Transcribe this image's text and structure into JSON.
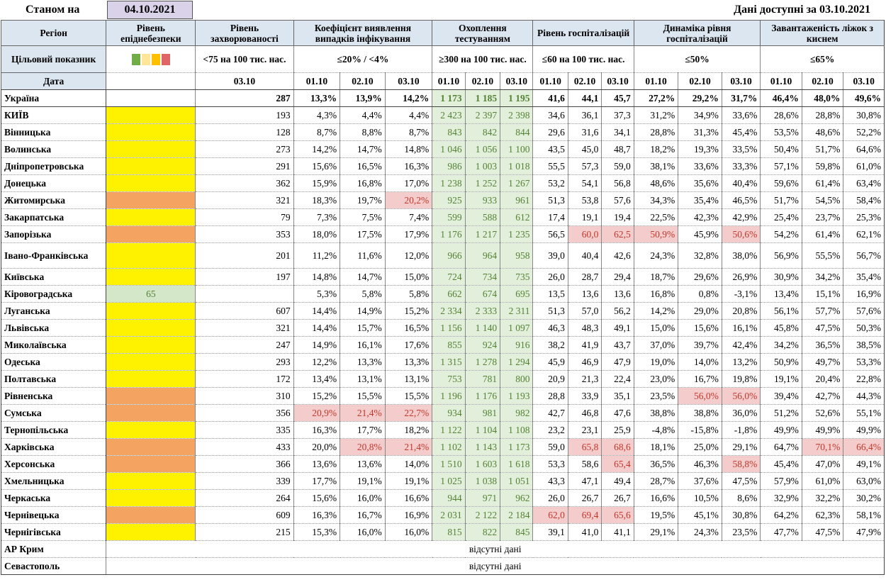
{
  "header": {
    "as_of_label": "Станом на",
    "as_of_date": "04.10.2021",
    "available_label": "Дані доступні за 03.10.2021"
  },
  "columns": {
    "region": "Регіон",
    "level": "Рівень епіднебезпеки",
    "incidence": "Рівень захворюваності",
    "detection": "Коефіцієнт виявлення випадків інфікування",
    "testing": "Охоплення тестуванням",
    "hosp": "Рівень госпіталізацій",
    "hosp_dyn": "Динаміка рівня госпіталізацій",
    "oxygen": "Завантаженість ліжок з киснем"
  },
  "targets": {
    "label": "Цільовий показник",
    "incidence": "<75 на 100 тис. нас.",
    "detection": "≤20% / <4%",
    "testing": "≥300 на 100 тис. нас.",
    "hosp": "≤60 на 100 тис. нас.",
    "hosp_dyn": "≤50%",
    "oxygen": "≤65%"
  },
  "level_swatch_colors": [
    "#70ad47",
    "#ffe699",
    "#ffc000",
    "#e06666"
  ],
  "date_row": {
    "label": "Дата",
    "incidence_date": "03.10",
    "dates": [
      "01.10",
      "02.10",
      "03.10"
    ]
  },
  "ukraine": {
    "name": "Україна",
    "incidence": "287",
    "detection": [
      "13,3%",
      "13,9%",
      "14,2%"
    ],
    "testing": [
      "1 173",
      "1 185",
      "1 195"
    ],
    "hosp": [
      "41,6",
      "44,1",
      "45,7"
    ],
    "hosp_dyn": [
      "27,2%",
      "29,2%",
      "31,7%"
    ],
    "oxygen": [
      "46,4%",
      "48,0%",
      "49,6%"
    ]
  },
  "regions": [
    {
      "name": "КИЇВ",
      "level": "yellow",
      "level_text": "",
      "incidence": "193",
      "detection": [
        "4,3%",
        "4,4%",
        "4,4%"
      ],
      "testing": [
        "2 423",
        "2 397",
        "2 398"
      ],
      "hosp": [
        "34,6",
        "36,1",
        "37,3"
      ],
      "hosp_dyn": [
        "31,2%",
        "34,9%",
        "33,6%"
      ],
      "oxygen": [
        "28,6%",
        "28,8%",
        "30,8%"
      ],
      "warn": []
    },
    {
      "name": "Вінницька",
      "level": "yellow",
      "level_text": "",
      "incidence": "128",
      "detection": [
        "8,7%",
        "8,8%",
        "8,7%"
      ],
      "testing": [
        "843",
        "842",
        "844"
      ],
      "hosp": [
        "29,6",
        "31,6",
        "34,1"
      ],
      "hosp_dyn": [
        "28,8%",
        "31,3%",
        "45,4%"
      ],
      "oxygen": [
        "53,5%",
        "48,6%",
        "52,2%"
      ],
      "warn": []
    },
    {
      "name": "Волинська",
      "level": "yellow",
      "level_text": "",
      "incidence": "273",
      "detection": [
        "14,2%",
        "14,7%",
        "14,8%"
      ],
      "testing": [
        "1 046",
        "1 056",
        "1 100"
      ],
      "hosp": [
        "43,5",
        "45,0",
        "48,7"
      ],
      "hosp_dyn": [
        "18,2%",
        "19,3%",
        "33,5%"
      ],
      "oxygen": [
        "50,4%",
        "51,7%",
        "64,6%"
      ],
      "warn": []
    },
    {
      "name": "Дніпропетровська",
      "level": "yellow",
      "level_text": "",
      "incidence": "291",
      "detection": [
        "15,6%",
        "16,5%",
        "16,3%"
      ],
      "testing": [
        "986",
        "1 003",
        "1 018"
      ],
      "hosp": [
        "55,5",
        "57,3",
        "59,0"
      ],
      "hosp_dyn": [
        "38,1%",
        "33,6%",
        "33,3%"
      ],
      "oxygen": [
        "57,1%",
        "59,8%",
        "61,0%"
      ],
      "warn": []
    },
    {
      "name": "Донецька",
      "level": "yellow",
      "level_text": "",
      "incidence": "362",
      "detection": [
        "15,9%",
        "16,8%",
        "17,0%"
      ],
      "testing": [
        "1 238",
        "1 252",
        "1 267"
      ],
      "hosp": [
        "53,2",
        "54,1",
        "56,8"
      ],
      "hosp_dyn": [
        "48,6%",
        "35,6%",
        "40,4%"
      ],
      "oxygen": [
        "59,6%",
        "61,4%",
        "63,4%"
      ],
      "warn": []
    },
    {
      "name": "Житомирська",
      "level": "orange",
      "level_text": "",
      "incidence": "321",
      "detection": [
        "18,3%",
        "19,7%",
        "20,2%"
      ],
      "testing": [
        "925",
        "933",
        "961"
      ],
      "hosp": [
        "51,3",
        "53,8",
        "57,6"
      ],
      "hosp_dyn": [
        "34,3%",
        "35,4%",
        "46,5%"
      ],
      "oxygen": [
        "51,7%",
        "54,5%",
        "58,4%"
      ],
      "warn": [
        "detection.2"
      ]
    },
    {
      "name": "Закарпатська",
      "level": "yellow",
      "level_text": "",
      "incidence": "79",
      "detection": [
        "7,3%",
        "7,5%",
        "7,4%"
      ],
      "testing": [
        "599",
        "588",
        "612"
      ],
      "hosp": [
        "17,4",
        "19,1",
        "19,4"
      ],
      "hosp_dyn": [
        "22,5%",
        "42,3%",
        "42,9%"
      ],
      "oxygen": [
        "25,4%",
        "23,7%",
        "25,3%"
      ],
      "warn": []
    },
    {
      "name": "Запорізька",
      "level": "orange",
      "level_text": "",
      "incidence": "353",
      "detection": [
        "18,0%",
        "17,5%",
        "17,9%"
      ],
      "testing": [
        "1 176",
        "1 217",
        "1 235"
      ],
      "hosp": [
        "56,5",
        "60,0",
        "62,5"
      ],
      "hosp_dyn": [
        "50,9%",
        "45,9%",
        "50,6%"
      ],
      "oxygen": [
        "54,2%",
        "61,4%",
        "62,1%"
      ],
      "warn": [
        "hosp.1",
        "hosp.2",
        "hosp_dyn.0",
        "hosp_dyn.2"
      ]
    },
    {
      "name": "Івано-Франківська",
      "level": "yellow",
      "level_text": "",
      "incidence": "201",
      "detection": [
        "11,2%",
        "11,6%",
        "12,0%"
      ],
      "testing": [
        "966",
        "964",
        "958"
      ],
      "hosp": [
        "39,0",
        "40,4",
        "42,6"
      ],
      "hosp_dyn": [
        "24,3%",
        "32,8%",
        "38,0%"
      ],
      "oxygen": [
        "56,9%",
        "55,5%",
        "56,7%"
      ],
      "warn": [],
      "tall": true
    },
    {
      "name": "Київська",
      "level": "yellow",
      "level_text": "",
      "incidence": "197",
      "detection": [
        "14,8%",
        "14,7%",
        "15,0%"
      ],
      "testing": [
        "724",
        "734",
        "735"
      ],
      "hosp": [
        "26,0",
        "28,7",
        "29,4"
      ],
      "hosp_dyn": [
        "18,7%",
        "29,6%",
        "26,9%"
      ],
      "oxygen": [
        "30,9%",
        "34,2%",
        "35,4%"
      ],
      "warn": []
    },
    {
      "name": "Кіровоградська",
      "level": "green",
      "level_text": "65",
      "incidence": "",
      "detection": [
        "5,3%",
        "5,8%",
        "5,8%"
      ],
      "testing": [
        "662",
        "674",
        "695"
      ],
      "hosp": [
        "13,5",
        "13,6",
        "13,6"
      ],
      "hosp_dyn": [
        "16,8%",
        "0,8%",
        "-3,1%"
      ],
      "oxygen": [
        "13,4%",
        "15,1%",
        "16,9%"
      ],
      "warn": []
    },
    {
      "name": "Луганська",
      "level": "yellow",
      "level_text": "",
      "incidence": "607",
      "detection": [
        "14,4%",
        "14,9%",
        "15,2%"
      ],
      "testing": [
        "2 334",
        "2 333",
        "2 311"
      ],
      "hosp": [
        "51,3",
        "57,0",
        "56,2"
      ],
      "hosp_dyn": [
        "14,2%",
        "29,0%",
        "20,8%"
      ],
      "oxygen": [
        "56,1%",
        "57,7%",
        "57,6%"
      ],
      "warn": []
    },
    {
      "name": "Львівська",
      "level": "yellow",
      "level_text": "",
      "incidence": "321",
      "detection": [
        "14,4%",
        "15,7%",
        "16,5%"
      ],
      "testing": [
        "1 156",
        "1 140",
        "1 097"
      ],
      "hosp": [
        "46,3",
        "48,3",
        "49,1"
      ],
      "hosp_dyn": [
        "15,0%",
        "15,6%",
        "16,1%"
      ],
      "oxygen": [
        "45,8%",
        "47,5%",
        "50,3%"
      ],
      "warn": []
    },
    {
      "name": "Миколаївська",
      "level": "yellow",
      "level_text": "",
      "incidence": "247",
      "detection": [
        "14,9%",
        "16,1%",
        "17,6%"
      ],
      "testing": [
        "855",
        "924",
        "916"
      ],
      "hosp": [
        "38,2",
        "41,9",
        "43,7"
      ],
      "hosp_dyn": [
        "37,0%",
        "39,7%",
        "42,4%"
      ],
      "oxygen": [
        "34,2%",
        "36,5%",
        "38,5%"
      ],
      "warn": []
    },
    {
      "name": "Одеська",
      "level": "yellow",
      "level_text": "",
      "incidence": "293",
      "detection": [
        "12,2%",
        "13,3%",
        "13,3%"
      ],
      "testing": [
        "1 315",
        "1 278",
        "1 294"
      ],
      "hosp": [
        "45,9",
        "46,9",
        "47,9"
      ],
      "hosp_dyn": [
        "19,0%",
        "14,0%",
        "13,2%"
      ],
      "oxygen": [
        "50,9%",
        "49,7%",
        "53,3%"
      ],
      "warn": []
    },
    {
      "name": "Полтавська",
      "level": "yellow",
      "level_text": "",
      "incidence": "172",
      "detection": [
        "13,4%",
        "13,1%",
        "13,1%"
      ],
      "testing": [
        "753",
        "781",
        "800"
      ],
      "hosp": [
        "20,9",
        "21,3",
        "22,4"
      ],
      "hosp_dyn": [
        "23,0%",
        "16,7%",
        "19,8%"
      ],
      "oxygen": [
        "19,1%",
        "20,4%",
        "22,8%"
      ],
      "warn": []
    },
    {
      "name": "Рівненська",
      "level": "orange",
      "level_text": "",
      "incidence": "310",
      "detection": [
        "15,2%",
        "15,5%",
        "15,5%"
      ],
      "testing": [
        "1 196",
        "1 176",
        "1 193"
      ],
      "hosp": [
        "28,8",
        "33,9",
        "35,1"
      ],
      "hosp_dyn": [
        "23,5%",
        "56,0%",
        "56,0%"
      ],
      "oxygen": [
        "39,4%",
        "42,7%",
        "44,3%"
      ],
      "warn": [
        "hosp_dyn.1",
        "hosp_dyn.2"
      ]
    },
    {
      "name": "Сумська",
      "level": "orange",
      "level_text": "",
      "incidence": "356",
      "detection": [
        "20,9%",
        "21,4%",
        "22,7%"
      ],
      "testing": [
        "934",
        "981",
        "982"
      ],
      "hosp": [
        "42,7",
        "46,8",
        "47,6"
      ],
      "hosp_dyn": [
        "38,8%",
        "38,8%",
        "36,0%"
      ],
      "oxygen": [
        "51,2%",
        "52,6%",
        "55,1%"
      ],
      "warn": [
        "detection.0",
        "detection.1",
        "detection.2"
      ]
    },
    {
      "name": "Тернопільська",
      "level": "yellow",
      "level_text": "",
      "incidence": "335",
      "detection": [
        "16,3%",
        "17,7%",
        "18,2%"
      ],
      "testing": [
        "1 122",
        "1 104",
        "1 108"
      ],
      "hosp": [
        "23,2",
        "23,1",
        "25,9"
      ],
      "hosp_dyn": [
        "-4,8%",
        "-15,8%",
        "-1,8%"
      ],
      "oxygen": [
        "49,9%",
        "49,9%",
        "49,9%"
      ],
      "warn": []
    },
    {
      "name": "Харківська",
      "level": "orange",
      "level_text": "",
      "incidence": "433",
      "detection": [
        "20,0%",
        "20,8%",
        "21,4%"
      ],
      "testing": [
        "1 102",
        "1 143",
        "1 173"
      ],
      "hosp": [
        "59,0",
        "65,8",
        "68,6"
      ],
      "hosp_dyn": [
        "18,1%",
        "25,0%",
        "29,1%"
      ],
      "oxygen": [
        "64,7%",
        "70,1%",
        "66,4%"
      ],
      "warn": [
        "detection.1",
        "detection.2",
        "hosp.1",
        "hosp.2",
        "oxygen.1",
        "oxygen.2"
      ]
    },
    {
      "name": "Херсонська",
      "level": "orange",
      "level_text": "",
      "incidence": "366",
      "detection": [
        "13,6%",
        "13,6%",
        "14,0%"
      ],
      "testing": [
        "1 510",
        "1 603",
        "1 618"
      ],
      "hosp": [
        "53,3",
        "58,6",
        "65,4"
      ],
      "hosp_dyn": [
        "36,5%",
        "46,3%",
        "58,8%"
      ],
      "oxygen": [
        "45,4%",
        "47,0%",
        "49,1%"
      ],
      "warn": [
        "hosp.2",
        "hosp_dyn.2"
      ]
    },
    {
      "name": "Хмельницька",
      "level": "yellow",
      "level_text": "",
      "incidence": "339",
      "detection": [
        "17,7%",
        "19,1%",
        "19,1%"
      ],
      "testing": [
        "1 025",
        "1 038",
        "1 051"
      ],
      "hosp": [
        "43,3",
        "47,1",
        "49,4"
      ],
      "hosp_dyn": [
        "28,7%",
        "37,6%",
        "47,5%"
      ],
      "oxygen": [
        "57,9%",
        "61,0%",
        "63,0%"
      ],
      "warn": []
    },
    {
      "name": "Черкаська",
      "level": "yellow",
      "level_text": "",
      "incidence": "264",
      "detection": [
        "15,6%",
        "16,0%",
        "16,6%"
      ],
      "testing": [
        "944",
        "971",
        "962"
      ],
      "hosp": [
        "26,0",
        "26,7",
        "26,7"
      ],
      "hosp_dyn": [
        "16,6%",
        "10,5%",
        "8,6%"
      ],
      "oxygen": [
        "32,9%",
        "32,2%",
        "30,2%"
      ],
      "warn": []
    },
    {
      "name": "Чернівецька",
      "level": "orange",
      "level_text": "",
      "incidence": "609",
      "detection": [
        "16,3%",
        "16,7%",
        "16,9%"
      ],
      "testing": [
        "2 031",
        "2 122",
        "2 184"
      ],
      "hosp": [
        "62,0",
        "69,4",
        "65,6"
      ],
      "hosp_dyn": [
        "19,5%",
        "45,1%",
        "30,8%"
      ],
      "oxygen": [
        "64,2%",
        "62,3%",
        "58,1%"
      ],
      "warn": [
        "hosp.0",
        "hosp.1",
        "hosp.2"
      ]
    },
    {
      "name": "Чернігівська",
      "level": "yellow",
      "level_text": "",
      "incidence": "215",
      "detection": [
        "15,3%",
        "16,0%",
        "16,0%"
      ],
      "testing": [
        "815",
        "822",
        "845"
      ],
      "hosp": [
        "39,1",
        "41,0",
        "41,1"
      ],
      "hosp_dyn": [
        "29,1%",
        "24,3%",
        "23,5%"
      ],
      "oxygen": [
        "47,7%",
        "47,5%",
        "47,9%"
      ],
      "warn": []
    }
  ],
  "no_data": [
    {
      "name": "АР Крим",
      "text": "відсутні дані"
    },
    {
      "name": "Севастополь",
      "text": "відсутні дані"
    }
  ]
}
